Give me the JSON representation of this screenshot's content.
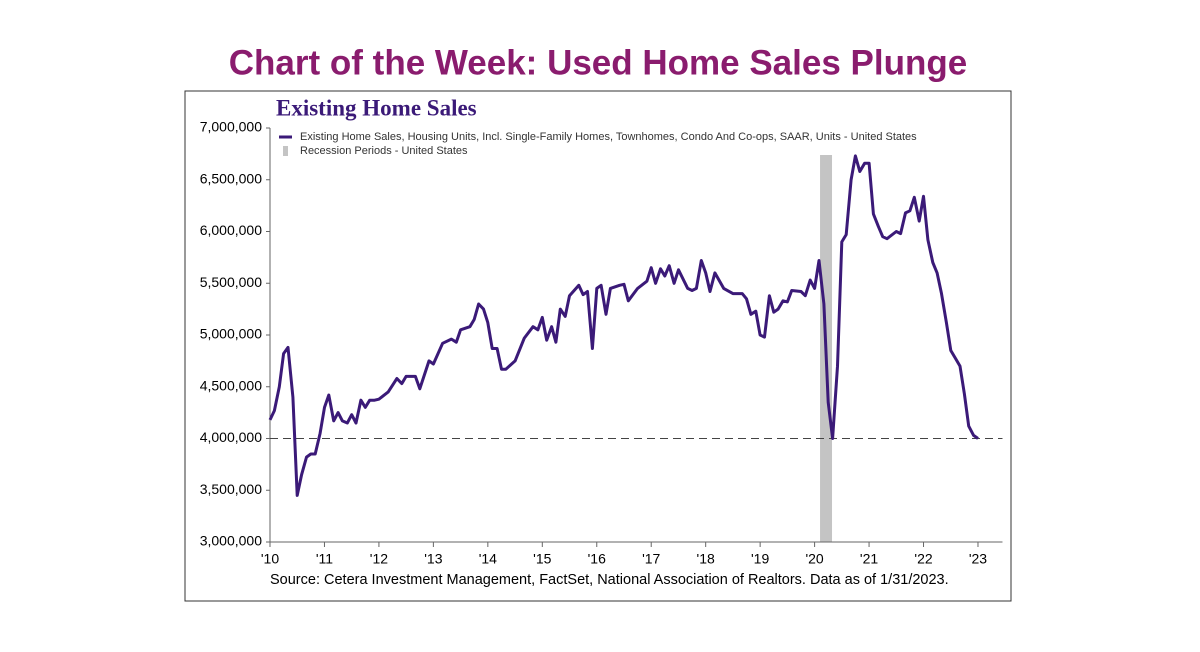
{
  "headline": "Chart of the Week: Used Home Sales Plunge",
  "chart_data": {
    "type": "line",
    "title": "Existing Home Sales",
    "source": "Source: Cetera Investment Management, FactSet, National Association of Realtors. Data as of 1/31/2023.",
    "xlim": [
      2010,
      2023.45
    ],
    "xticks": [
      {
        "value": 2010,
        "label": "'10"
      },
      {
        "value": 2011,
        "label": "'11"
      },
      {
        "value": 2012,
        "label": "'12"
      },
      {
        "value": 2013,
        "label": "'13"
      },
      {
        "value": 2014,
        "label": "'14"
      },
      {
        "value": 2015,
        "label": "'15"
      },
      {
        "value": 2016,
        "label": "'16"
      },
      {
        "value": 2017,
        "label": "'17"
      },
      {
        "value": 2018,
        "label": "'18"
      },
      {
        "value": 2019,
        "label": "'19"
      },
      {
        "value": 2020,
        "label": "'20"
      },
      {
        "value": 2021,
        "label": "'21"
      },
      {
        "value": 2022,
        "label": "'22"
      },
      {
        "value": 2023,
        "label": "'23"
      }
    ],
    "ylim": [
      3000000,
      7000000
    ],
    "yticks": [
      {
        "value": 3000000,
        "label": "3,000,000"
      },
      {
        "value": 3500000,
        "label": "3,500,000"
      },
      {
        "value": 4000000,
        "label": "4,000,000"
      },
      {
        "value": 4500000,
        "label": "4,500,000"
      },
      {
        "value": 5000000,
        "label": "5,000,000"
      },
      {
        "value": 5500000,
        "label": "5,500,000"
      },
      {
        "value": 6000000,
        "label": "6,000,000"
      },
      {
        "value": 6500000,
        "label": "6,500,000"
      },
      {
        "value": 7000000,
        "label": "7,000,000"
      }
    ],
    "reference_line": 4000000,
    "recession": {
      "name": "Recession Periods - United States",
      "color": "#c4c4c4",
      "x": [
        2020.1,
        2020.32
      ]
    },
    "x": [
      2010.0,
      2010.08,
      2010.17,
      2010.25,
      2010.33,
      2010.42,
      2010.5,
      2010.58,
      2010.67,
      2010.75,
      2010.83,
      2010.92,
      2011.0,
      2011.08,
      2011.17,
      2011.25,
      2011.33,
      2011.42,
      2011.5,
      2011.58,
      2011.67,
      2011.75,
      2011.83,
      2011.92,
      2012.0,
      2012.17,
      2012.33,
      2012.42,
      2012.5,
      2012.67,
      2012.75,
      2012.92,
      2013.0,
      2013.17,
      2013.33,
      2013.42,
      2013.5,
      2013.67,
      2013.75,
      2013.83,
      2013.92,
      2014.0,
      2014.08,
      2014.17,
      2014.25,
      2014.33,
      2014.5,
      2014.67,
      2014.83,
      2014.92,
      2015.0,
      2015.08,
      2015.17,
      2015.25,
      2015.33,
      2015.42,
      2015.5,
      2015.67,
      2015.75,
      2015.83,
      2015.92,
      2016.0,
      2016.08,
      2016.17,
      2016.25,
      2016.42,
      2016.5,
      2016.58,
      2016.75,
      2016.92,
      2017.0,
      2017.08,
      2017.17,
      2017.25,
      2017.33,
      2017.42,
      2017.5,
      2017.67,
      2017.75,
      2017.83,
      2017.92,
      2018.0,
      2018.08,
      2018.17,
      2018.33,
      2018.5,
      2018.67,
      2018.75,
      2018.83,
      2018.92,
      2019.0,
      2019.08,
      2019.17,
      2019.25,
      2019.33,
      2019.42,
      2019.5,
      2019.58,
      2019.75,
      2019.83,
      2019.92,
      2020.0,
      2020.08,
      2020.17,
      2020.25,
      2020.33,
      2020.42,
      2020.5,
      2020.58,
      2020.67,
      2020.75,
      2020.83,
      2020.92,
      2021.0,
      2021.08,
      2021.17,
      2021.25,
      2021.33,
      2021.5,
      2021.58,
      2021.67,
      2021.75,
      2021.83,
      2021.92,
      2022.0,
      2022.08,
      2022.17,
      2022.25,
      2022.33,
      2022.42,
      2022.5,
      2022.58,
      2022.67,
      2022.75,
      2022.83,
      2022.92,
      2023.0
    ],
    "series": [
      {
        "name": "Existing Home Sales, Housing Units, Incl. Single-Family Homes, Townhomes, Condo And Co-ops, SAAR, Units - United States",
        "color": "#3b1a78",
        "values": [
          4180000,
          4270000,
          4500000,
          4820000,
          4880000,
          4400000,
          3450000,
          3650000,
          3820000,
          3850000,
          3850000,
          4050000,
          4300000,
          4420000,
          4170000,
          4250000,
          4170000,
          4150000,
          4230000,
          4150000,
          4370000,
          4300000,
          4370000,
          4370000,
          4380000,
          4450000,
          4580000,
          4530000,
          4600000,
          4600000,
          4480000,
          4750000,
          4720000,
          4920000,
          4960000,
          4930000,
          5050000,
          5080000,
          5150000,
          5300000,
          5250000,
          5120000,
          4870000,
          4870000,
          4670000,
          4670000,
          4750000,
          4970000,
          5080000,
          5050000,
          5170000,
          4950000,
          5080000,
          4930000,
          5250000,
          5180000,
          5380000,
          5480000,
          5390000,
          5420000,
          4870000,
          5450000,
          5480000,
          5200000,
          5450000,
          5480000,
          5490000,
          5330000,
          5450000,
          5520000,
          5650000,
          5500000,
          5640000,
          5570000,
          5670000,
          5500000,
          5630000,
          5450000,
          5430000,
          5450000,
          5720000,
          5600000,
          5420000,
          5600000,
          5450000,
          5400000,
          5400000,
          5350000,
          5200000,
          5230000,
          5000000,
          4980000,
          5380000,
          5220000,
          5250000,
          5330000,
          5320000,
          5430000,
          5420000,
          5380000,
          5530000,
          5450000,
          5720000,
          5300000,
          4350000,
          4000000,
          4700000,
          5900000,
          5970000,
          6500000,
          6730000,
          6580000,
          6660000,
          6660000,
          6170000,
          6050000,
          5950000,
          5930000,
          6000000,
          5980000,
          6180000,
          6200000,
          6330000,
          6100000,
          6340000,
          5920000,
          5700000,
          5600000,
          5400000,
          5120000,
          4850000,
          4780000,
          4700000,
          4430000,
          4120000,
          4030000,
          4000000
        ]
      }
    ]
  }
}
